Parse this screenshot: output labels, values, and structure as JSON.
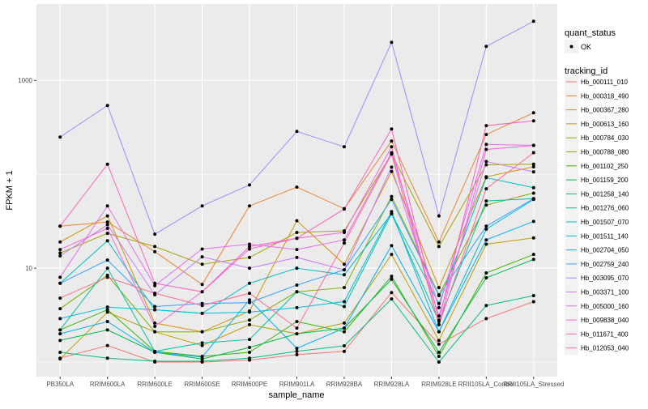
{
  "chart_data": {
    "type": "line",
    "xlabel": "sample_name",
    "ylabel": "FPKM + 1",
    "y_scale": "log10",
    "ylim": [
      0.7,
      6500
    ],
    "y_ticks": [
      10,
      1000
    ],
    "y_tick_labels": [
      "10",
      "1000"
    ],
    "y_minor_ticks": [
      1,
      100
    ],
    "grid": true,
    "legend_placement": "right",
    "categories": [
      "PB350LA",
      "RRIM600LA",
      "RRIM600LE",
      "RRIM600SE",
      "RRIM600PE",
      "RRIM901LA",
      "RRIM928BA",
      "RRIM928LA",
      "RRIM928LE",
      "RRII105LA_Control",
      "RRII105LA_Stressed"
    ],
    "point_legend": {
      "title": "quant_status",
      "entries": [
        "OK"
      ],
      "color": "#000000"
    },
    "line_legend_title": "tracking_id",
    "series": [
      {
        "name": "Hb_000111_010",
        "color": "#F8766D",
        "values": [
          1.1,
          1.5,
          1.0,
          1.0,
          1.05,
          1.2,
          1.3,
          5.5,
          1.55,
          2.9,
          4.4
        ]
      },
      {
        "name": "Hb_000318_490",
        "color": "#EA8331",
        "values": [
          28,
          31,
          15,
          6.7,
          46,
          73,
          43,
          226,
          19,
          265,
          452
        ]
      },
      {
        "name": "Hb_000367_280",
        "color": "#D89000",
        "values": [
          19,
          36,
          2.6,
          2.1,
          3.5,
          32,
          11,
          107,
          6.2,
          94,
          120
        ]
      },
      {
        "name": "Hb_000613_160",
        "color": "#C09B00",
        "values": [
          1.08,
          3.4,
          2.1,
          1.5,
          2.5,
          2.0,
          2.6,
          14,
          1.7,
          18,
          21
        ]
      },
      {
        "name": "Hb_000784_030",
        "color": "#A3A500",
        "values": [
          14.5,
          23.5,
          17,
          11,
          13,
          24,
          25,
          165,
          17,
          126,
          128
        ]
      },
      {
        "name": "Hb_000788_080",
        "color": "#7CAE00",
        "values": [
          3.7,
          8.4,
          2.1,
          2.1,
          2.8,
          5.6,
          6.2,
          58,
          5.2,
          47,
          63
        ]
      },
      {
        "name": "Hb_001102_250",
        "color": "#39B600",
        "values": [
          2.2,
          3.6,
          1.3,
          1.15,
          1.27,
          2.7,
          2.1,
          8.2,
          1.15,
          8.9,
          14
        ]
      },
      {
        "name": "Hb_001159_200",
        "color": "#00BB4E",
        "values": [
          1.7,
          2.2,
          1.27,
          1.08,
          1.43,
          2.0,
          2.3,
          7.6,
          1.27,
          7.9,
          12.4
        ]
      },
      {
        "name": "Hb_001258_140",
        "color": "#00BF7D",
        "values": [
          1.27,
          1.1,
          1.02,
          1.02,
          1.1,
          1.3,
          1.49,
          4.7,
          1.0,
          4.0,
          5.1
        ]
      },
      {
        "name": "Hb_001276_060",
        "color": "#00C1A3",
        "values": [
          2.2,
          10,
          1.3,
          1.6,
          1.74,
          5.6,
          3.9,
          38,
          2.7,
          52,
          55
        ]
      },
      {
        "name": "Hb_001507_070",
        "color": "#00BFC4",
        "values": [
          6.9,
          19.6,
          3.6,
          3.3,
          6.9,
          10,
          8.5,
          38,
          4.2,
          92,
          72
        ]
      },
      {
        "name": "Hb_001511_140",
        "color": "#00BAE0",
        "values": [
          2.9,
          3.85,
          3.6,
          3.3,
          3.4,
          3.8,
          4.4,
          40,
          2.1,
          26,
          54
        ]
      },
      {
        "name": "Hb_002704_050",
        "color": "#00B0F6",
        "values": [
          2.0,
          2.7,
          1.27,
          1.13,
          4.6,
          1.4,
          2.3,
          17.4,
          2.1,
          20,
          31.5
        ]
      },
      {
        "name": "Hb_002759_240",
        "color": "#35A2FF",
        "values": [
          6.9,
          12.2,
          3.9,
          4.2,
          4.3,
          6.6,
          9.6,
          54,
          5.1,
          28,
          55
        ]
      },
      {
        "name": "Hb_003095_070",
        "color": "#9590FF",
        "values": [
          249,
          540,
          23,
          46,
          77,
          286,
          196,
          2540,
          36,
          2300,
          4260
        ]
      },
      {
        "name": "Hb_003371_100",
        "color": "#C77CFF",
        "values": [
          13.5,
          29,
          5.2,
          13.2,
          10,
          13,
          9.6,
          119,
          3.1,
          137,
          106
        ]
      },
      {
        "name": "Hb_005000_160",
        "color": "#E76BF3",
        "values": [
          8.0,
          46,
          6.5,
          16,
          18,
          15.8,
          20,
          170,
          3.8,
          208,
          203
        ]
      },
      {
        "name": "Hb_009838_040",
        "color": "#FA62DB",
        "values": [
          15.8,
          26.5,
          2.4,
          5.6,
          17,
          20.8,
          24,
          196,
          2.5,
          184,
          203
        ]
      },
      {
        "name": "Hb_011671_400",
        "color": "#FF62BC",
        "values": [
          28,
          128,
          6.9,
          5.6,
          16,
          20.8,
          42.6,
          304,
          2.8,
          330,
          370
        ]
      },
      {
        "name": "Hb_012053_040",
        "color": "#FF6C91",
        "values": [
          4.8,
          8.0,
          5.4,
          4.0,
          5.4,
          2.3,
          18.5,
          164,
          2.5,
          70,
          170
        ]
      }
    ]
  }
}
